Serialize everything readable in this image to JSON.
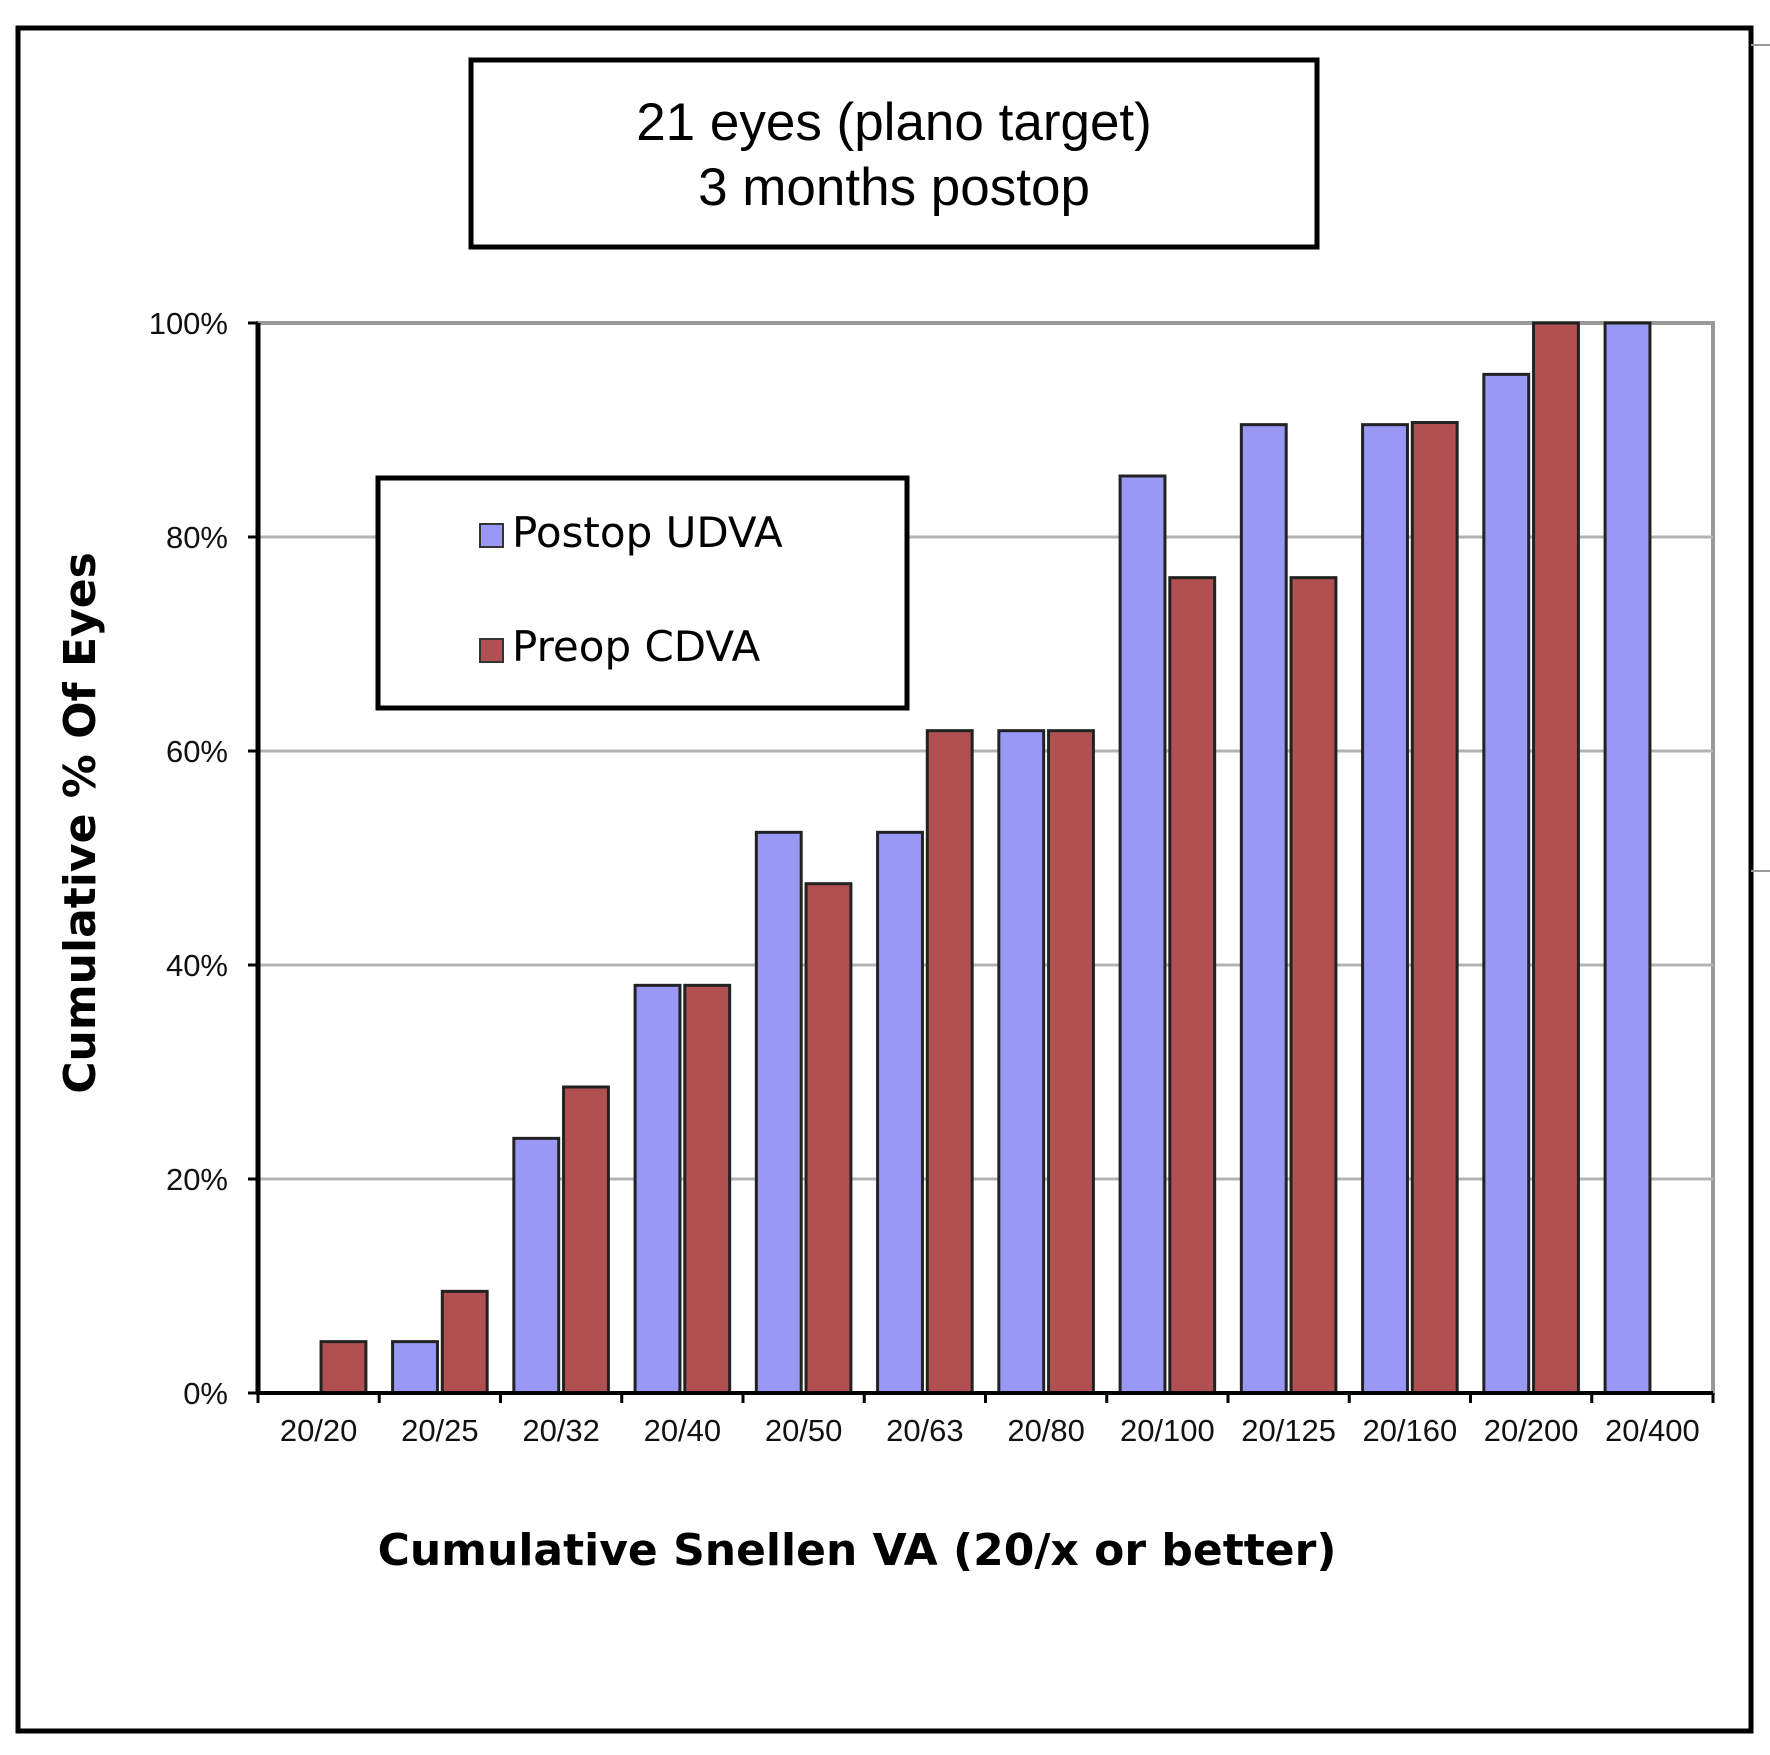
{
  "chart_data": {
    "type": "bar",
    "title_lines": [
      "21 eyes (plano target)",
      "3 months postop"
    ],
    "xlabel": "Cumulative Snellen VA (20/x or better)",
    "ylabel": "Cumulative % Of Eyes",
    "categories": [
      "20/20",
      "20/25",
      "20/32",
      "20/40",
      "20/50",
      "20/63",
      "20/80",
      "20/100",
      "20/125",
      "20/160",
      "20/200",
      "20/400"
    ],
    "ylim": [
      0,
      100
    ],
    "yticks": [
      0,
      20,
      40,
      60,
      80,
      100
    ],
    "ytick_labels": [
      "0%",
      "20%",
      "40%",
      "60%",
      "80%",
      "100%"
    ],
    "grid": true,
    "legend_position": "upper-left",
    "series": [
      {
        "name": "Postop UDVA",
        "color": "#9999f5",
        "values": [
          0,
          4.8,
          23.8,
          38.1,
          52.4,
          52.4,
          61.9,
          85.7,
          90.5,
          90.5,
          95.2,
          100
        ]
      },
      {
        "name": "Preop CDVA",
        "color": "#b05050",
        "values": [
          4.8,
          9.5,
          28.6,
          38.1,
          47.6,
          61.9,
          61.9,
          76.2,
          76.2,
          90.7,
          100,
          null
        ]
      }
    ]
  }
}
